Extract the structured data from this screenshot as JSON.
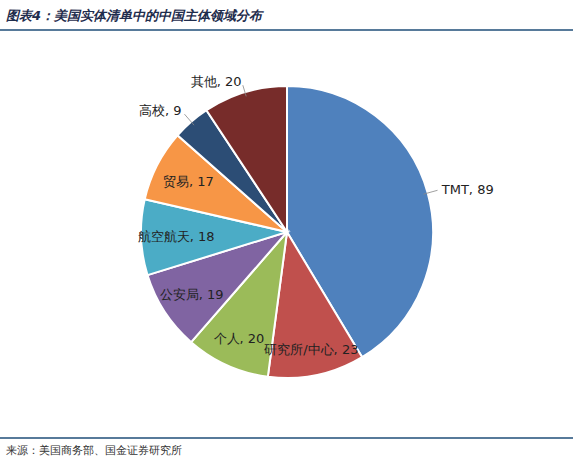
{
  "chart_data": {
    "type": "pie",
    "title": "图表4：美国实体清单中的中国主体领域分布",
    "categories": [
      "TMT",
      "研究所/中心",
      "个人",
      "公安局",
      "航空航天",
      "贸易",
      "高校",
      "其他"
    ],
    "values": [
      89,
      23,
      20,
      19,
      18,
      17,
      9,
      20
    ],
    "value_labels": [
      "TMT, 89",
      "研究所/中心, 23",
      "个人, 20",
      "公安局, 19",
      "航空航天, 18",
      "贸易, 17",
      "高校, 9",
      "其他, 20"
    ],
    "colors": [
      "#4f81bd",
      "#c0504d",
      "#9bbb59",
      "#8064a2",
      "#4bacc6",
      "#f79646",
      "#2c4d75",
      "#772c2a"
    ],
    "data_labels": true,
    "source": "来源：美国商务部、国金证券研究所"
  }
}
